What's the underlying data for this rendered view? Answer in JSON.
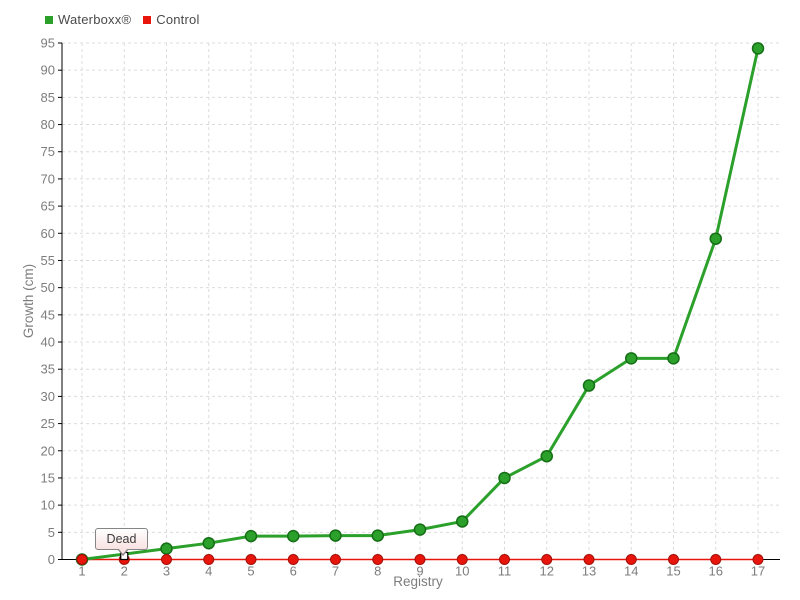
{
  "chart_data": {
    "type": "line",
    "title": "",
    "xlabel": "Registry",
    "ylabel": "Growth (cm)",
    "x": [
      1,
      2,
      3,
      4,
      5,
      6,
      7,
      8,
      9,
      10,
      11,
      12,
      13,
      14,
      15,
      16,
      17
    ],
    "series": [
      {
        "name": "Waterboxx®",
        "color": "#2ba02b",
        "edge": "#166e16",
        "values": [
          0,
          1,
          2,
          3,
          4.3,
          4.3,
          4.4,
          4.4,
          5.5,
          7,
          15,
          19,
          32,
          37,
          37,
          59,
          94
        ]
      },
      {
        "name": "Control",
        "color": "#e8150d",
        "edge": "#a11009",
        "values": [
          0,
          0,
          0,
          0,
          0,
          0,
          0,
          0,
          0,
          0,
          0,
          0,
          0,
          0,
          0,
          0,
          0
        ]
      }
    ],
    "ylim": [
      0,
      95
    ],
    "yticks": [
      0,
      5,
      10,
      15,
      20,
      25,
      30,
      35,
      40,
      45,
      50,
      55,
      60,
      65,
      70,
      75,
      80,
      85,
      90,
      95
    ],
    "xticks": [
      1,
      2,
      3,
      4,
      5,
      6,
      7,
      8,
      9,
      10,
      11,
      12,
      13,
      14,
      15,
      16,
      17
    ],
    "grid": true,
    "legend_position": "top-left",
    "annotation": {
      "label": "Dead",
      "x": 2,
      "value": 0,
      "marker": "white-square",
      "series": "Control"
    },
    "colors": {
      "background": "#ffffff",
      "grid": "#dcdcdc",
      "axis": "#000000",
      "tick_label": "#7d7d7d",
      "axis_title": "#7d7d7d",
      "legend_text": "#4a4a4a",
      "tooltip_border": "#858585",
      "tooltip_text": "#3c3c3c"
    }
  }
}
